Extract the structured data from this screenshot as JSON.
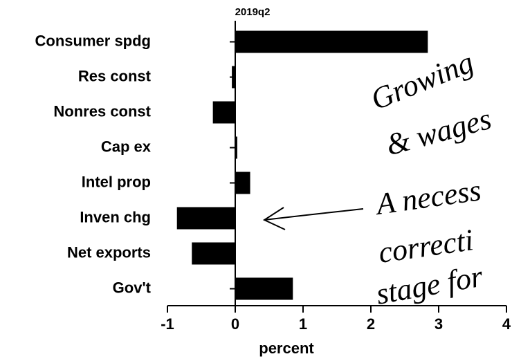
{
  "chart_data": {
    "type": "hbar",
    "title": "2019q2",
    "x_label": "percent",
    "categories": [
      "Consumer spdg",
      "Res const",
      "Nonres const",
      "Cap ex",
      "Intel prop",
      "Inven chg",
      "Net exports",
      "Gov't"
    ],
    "values": [
      2.84,
      -0.05,
      -0.33,
      0.03,
      0.22,
      -0.86,
      -0.64,
      0.85
    ],
    "color": "#000000",
    "xlim": [
      -1,
      4
    ],
    "xticks": [
      -1,
      0,
      1,
      2,
      3,
      4
    ],
    "annotations": [
      "Growing",
      "& wages",
      "A necess",
      "correcti",
      "stage for"
    ]
  }
}
